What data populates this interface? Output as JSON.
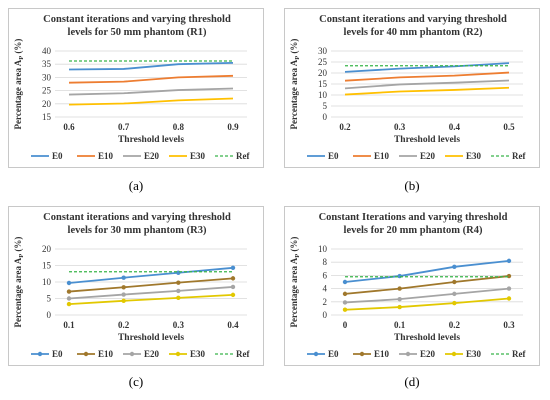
{
  "chart_data": [
    {
      "panel": "(a)",
      "type": "line",
      "title": [
        "Constant iterations and varying threshold",
        "levels for 50 mm phantom (R1)"
      ],
      "xlabel": "Threshold levels",
      "ylabel_main": "Percentage area A",
      "ylabel_sub": "P",
      "ylabel_suffix": " (%)",
      "categories": [
        "0.6",
        "0.7",
        "0.8",
        "0.9"
      ],
      "ylim": [
        15,
        40
      ],
      "yticks": [
        15,
        20,
        25,
        30,
        35,
        40
      ],
      "markers": false,
      "series": [
        {
          "name": "E0",
          "color": "#4a8fd0",
          "values": [
            33,
            33.2,
            35,
            35.5
          ]
        },
        {
          "name": "E10",
          "color": "#ed7d31",
          "values": [
            28,
            28.4,
            30,
            30.6
          ]
        },
        {
          "name": "E20",
          "color": "#a5a5a5",
          "values": [
            23.5,
            24,
            25.2,
            25.8
          ]
        },
        {
          "name": "E30",
          "color": "#ffc000",
          "values": [
            19.7,
            20.1,
            21.3,
            22
          ]
        },
        {
          "name": "Ref",
          "color": "#39b54a",
          "dashed": true,
          "values": [
            36.2,
            36.2,
            36.2,
            36.2
          ]
        }
      ]
    },
    {
      "panel": "(b)",
      "type": "line",
      "title": [
        "Constant iterations and varying threshold",
        "levels for 40 mm phantom (R2)"
      ],
      "xlabel": "Threshold levels",
      "ylabel_main": "Percentage area A",
      "ylabel_sub": "P",
      "ylabel_suffix": " (%)",
      "categories": [
        "0.2",
        "0.3",
        "0.4",
        "0.5"
      ],
      "ylim": [
        0,
        30
      ],
      "yticks": [
        0,
        5,
        10,
        15,
        20,
        25,
        30
      ],
      "markers": false,
      "series": [
        {
          "name": "E0",
          "color": "#4a8fd0",
          "values": [
            20.5,
            22,
            23,
            24.5
          ]
        },
        {
          "name": "E10",
          "color": "#ed7d31",
          "values": [
            16.5,
            18,
            18.8,
            20.2
          ]
        },
        {
          "name": "E20",
          "color": "#a5a5a5",
          "values": [
            13,
            14.8,
            15.6,
            16.6
          ]
        },
        {
          "name": "E30",
          "color": "#ffc000",
          "values": [
            10.2,
            11.6,
            12.3,
            13.3
          ]
        },
        {
          "name": "Ref",
          "color": "#39b54a",
          "dashed": true,
          "values": [
            23.3,
            23.3,
            23.3,
            23.3
          ]
        }
      ]
    },
    {
      "panel": "(c)",
      "type": "line",
      "title": [
        "Constant iterations and varying threshold",
        "levels for 30 mm phantom (R3)"
      ],
      "xlabel": "Threshold levels",
      "ylabel_main": "Percentage area A",
      "ylabel_sub": "P",
      "ylabel_suffix": " (%)",
      "categories": [
        "0.1",
        "0.2",
        "0.3",
        "0.4"
      ],
      "ylim": [
        0,
        20
      ],
      "yticks": [
        0,
        5,
        10,
        15,
        20
      ],
      "markers": true,
      "series": [
        {
          "name": "E0",
          "color": "#4a8fd0",
          "values": [
            9.7,
            11.3,
            12.8,
            14.3
          ]
        },
        {
          "name": "E10",
          "color": "#a0782c",
          "values": [
            7.1,
            8.4,
            9.8,
            11.1
          ]
        },
        {
          "name": "E20",
          "color": "#a5a5a5",
          "values": [
            5,
            6.2,
            7.3,
            8.5
          ]
        },
        {
          "name": "E30",
          "color": "#e2c800",
          "values": [
            3.3,
            4.3,
            5.2,
            6.1
          ]
        },
        {
          "name": "Ref",
          "color": "#39b54a",
          "dashed": true,
          "values": [
            13.1,
            13.1,
            13.1,
            13.1
          ]
        }
      ]
    },
    {
      "panel": "(d)",
      "type": "line",
      "title": [
        "Constant Iterations and varying threshold",
        "levels for 20 mm phantom (R4)"
      ],
      "xlabel": "Threshold levels",
      "ylabel_main": "Percentage area A",
      "ylabel_sub": "P",
      "ylabel_suffix": " (%)",
      "categories": [
        "0",
        "0.1",
        "0.2",
        "0.3"
      ],
      "ylim": [
        0,
        10
      ],
      "yticks": [
        0,
        2,
        4,
        6,
        8,
        10
      ],
      "markers": true,
      "series": [
        {
          "name": "E0",
          "color": "#4a8fd0",
          "values": [
            5,
            5.9,
            7.3,
            8.2
          ]
        },
        {
          "name": "E10",
          "color": "#a0782c",
          "values": [
            3.2,
            4,
            5,
            5.9
          ]
        },
        {
          "name": "E20",
          "color": "#a5a5a5",
          "values": [
            1.9,
            2.4,
            3.2,
            4
          ]
        },
        {
          "name": "E30",
          "color": "#e2c800",
          "values": [
            0.8,
            1.2,
            1.8,
            2.5
          ]
        },
        {
          "name": "Ref",
          "color": "#39b54a",
          "dashed": true,
          "values": [
            5.8,
            5.8,
            5.8,
            5.8
          ]
        }
      ]
    }
  ]
}
